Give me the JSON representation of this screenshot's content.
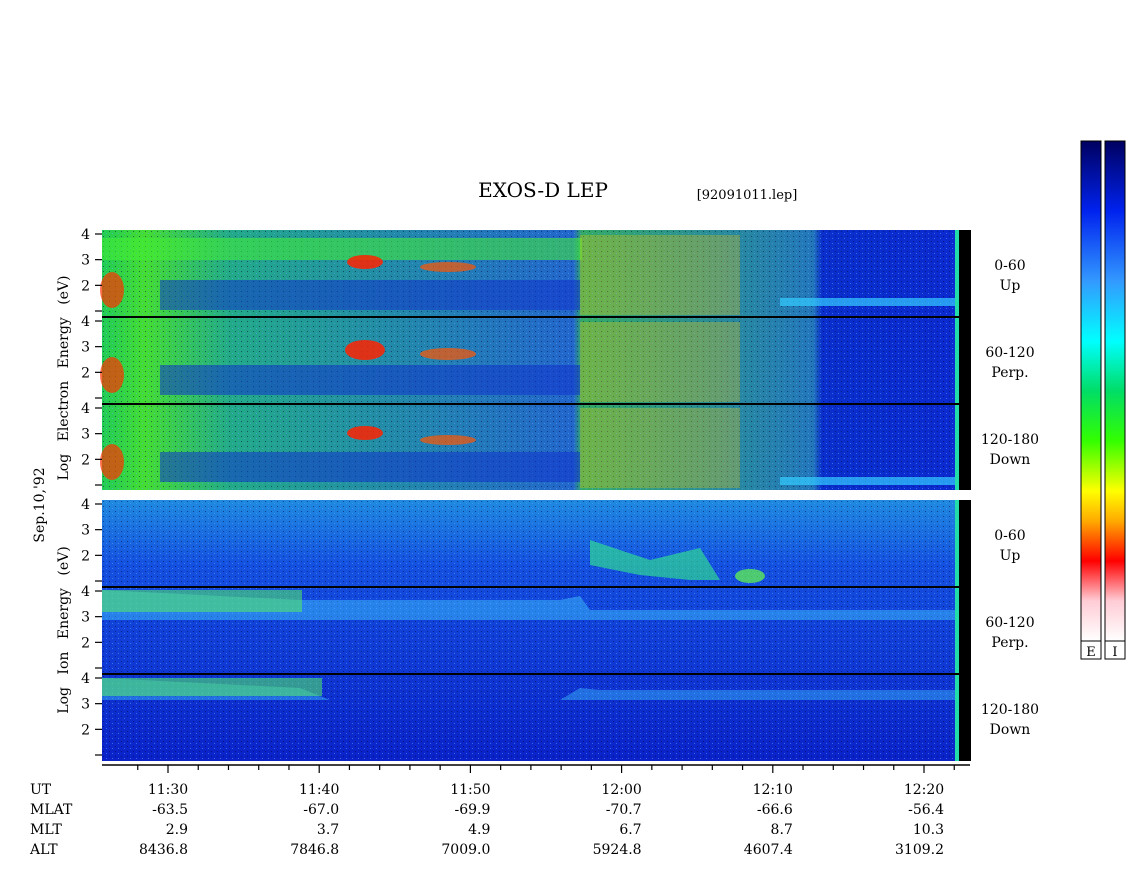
{
  "header": {
    "title": "EXOS-D LEP",
    "file_id": "[92091011.lep]"
  },
  "colorbar": {
    "labels": [
      "E",
      "I"
    ],
    "stops": [
      "#ffffff",
      "#ff99aa",
      "#ff0000",
      "#ffaa00",
      "#ffff00",
      "#88ff00",
      "#00cc44",
      "#00ffff",
      "#2266ff",
      "#0000cc",
      "#00005a"
    ]
  },
  "left_labels": {
    "date": "Sep.10,'92",
    "electron_lines": [
      "Log",
      "Electron",
      "Energy",
      "(eV)"
    ],
    "ion_lines": [
      "Log",
      "Ion",
      "Energy",
      "(eV)"
    ]
  },
  "chart_data": {
    "type": "heatmap",
    "title": "EXOS-D LEP",
    "panels": [
      {
        "species": "Electron",
        "pitch_angle": "0-60",
        "direction": "Up"
      },
      {
        "species": "Electron",
        "pitch_angle": "60-120",
        "direction": "Perp."
      },
      {
        "species": "Electron",
        "pitch_angle": "120-180",
        "direction": "Down"
      },
      {
        "species": "Ion",
        "pitch_angle": "0-60",
        "direction": "Up"
      },
      {
        "species": "Ion",
        "pitch_angle": "60-120",
        "direction": "Perp."
      },
      {
        "species": "Ion",
        "pitch_angle": "120-180",
        "direction": "Down"
      }
    ],
    "y_ticks": [
      "1",
      "2",
      "3",
      "4"
    ],
    "ylim": [
      1,
      4
    ],
    "x_row_labels": [
      "UT",
      "MLAT",
      "MLT",
      "ALT"
    ],
    "x_columns": [
      {
        "UT": "11:30",
        "MLAT": "-63.5",
        "MLT": "2.9",
        "ALT": "8436.8"
      },
      {
        "UT": "11:40",
        "MLAT": "-67.0",
        "MLT": "3.7",
        "ALT": "7846.8"
      },
      {
        "UT": "11:50",
        "MLAT": "-69.9",
        "MLT": "4.9",
        "ALT": "7009.0"
      },
      {
        "UT": "12:00",
        "MLAT": "-70.7",
        "MLT": "6.7",
        "ALT": "5924.8"
      },
      {
        "UT": "12:10",
        "MLAT": "-66.6",
        "MLT": "8.7",
        "ALT": "4607.4"
      },
      {
        "UT": "12:20",
        "MLAT": "-56.4",
        "MLT": "10.3",
        "ALT": "3109.2"
      }
    ]
  }
}
